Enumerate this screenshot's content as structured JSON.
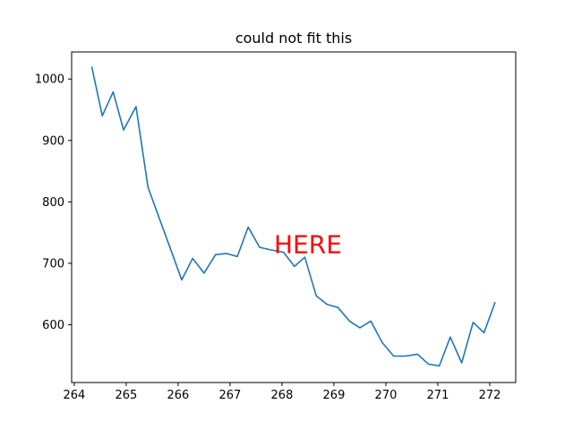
{
  "chart_data": {
    "type": "line",
    "title": "could not fit this",
    "xlabel": "",
    "ylabel": "",
    "xlim": [
      263.95,
      272.5
    ],
    "ylim": [
      506,
      1044
    ],
    "x_ticks": [
      264,
      265,
      266,
      267,
      268,
      269,
      270,
      271,
      272
    ],
    "y_ticks": [
      600,
      700,
      800,
      900,
      1000
    ],
    "grid": false,
    "series": [
      {
        "color": "#1f77b4",
        "x": [
          264.34,
          264.54,
          264.75,
          264.95,
          265.19,
          265.42,
          265.6,
          265.83,
          266.07,
          266.28,
          266.5,
          266.72,
          266.93,
          267.14,
          267.35,
          267.57,
          267.78,
          268.03,
          268.24,
          268.44,
          268.66,
          268.87,
          269.08,
          269.3,
          269.5,
          269.71,
          269.93,
          270.15,
          270.37,
          270.61,
          270.82,
          271.03,
          271.24,
          271.46,
          271.68,
          271.89,
          272.1
        ],
        "y": [
          1019,
          940,
          979,
          917,
          955,
          824,
          782,
          729,
          673,
          708,
          684,
          714,
          716,
          711,
          759,
          726,
          722,
          718,
          695,
          710,
          647,
          633,
          628,
          606,
          595,
          606,
          571,
          549,
          549,
          552,
          536,
          533,
          580,
          538,
          604,
          587,
          636
        ]
      }
    ],
    "annotations": [
      {
        "text": "HERE",
        "x": 268.5,
        "y": 717,
        "color": "#ff0000"
      }
    ]
  }
}
